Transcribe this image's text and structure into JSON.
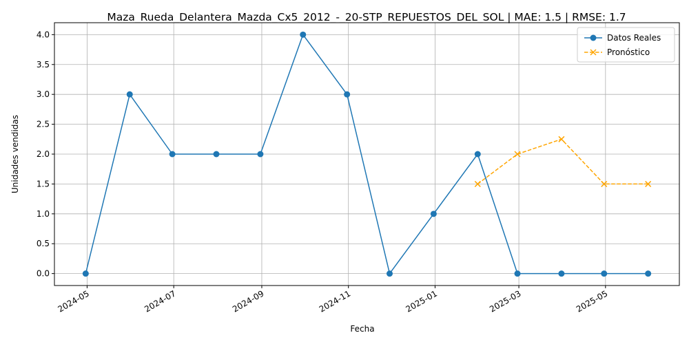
{
  "chart_data": {
    "type": "line",
    "title": "Maza_Rueda_Delantera_Mazda_Cx5_2012_-_20-STP_REPUESTOS_DEL_SOL | MAE: 1.5 | RMSE: 1.7",
    "xlabel": "Fecha",
    "ylabel": "Unidades vendidas",
    "ylim": [
      -0.2,
      4.2
    ],
    "xlim": [
      "2024-04-08",
      "2025-06-22"
    ],
    "grid": true,
    "legend_position": "upper-right",
    "x_ticks": [
      "2024-05",
      "2024-07",
      "2024-09",
      "2024-11",
      "2025-01",
      "2025-03",
      "2025-05"
    ],
    "y_ticks": [
      "0.0",
      "0.5",
      "1.0",
      "1.5",
      "2.0",
      "2.5",
      "3.0",
      "3.5",
      "4.0"
    ],
    "series": [
      {
        "name": "Datos Reales",
        "color": "#1f77b4",
        "marker": "circle",
        "linestyle": "solid",
        "x": [
          "2024-04-30",
          "2024-05-31",
          "2024-06-30",
          "2024-07-31",
          "2024-08-31",
          "2024-09-30",
          "2024-10-31",
          "2024-11-30",
          "2024-12-31",
          "2025-01-31",
          "2025-02-28",
          "2025-03-31",
          "2025-04-30",
          "2025-05-31"
        ],
        "values": [
          0,
          3,
          2,
          2,
          2,
          4,
          3,
          0,
          1,
          2,
          0,
          0,
          0,
          0
        ]
      },
      {
        "name": "Pronóstico",
        "color": "#ffa500",
        "marker": "x",
        "linestyle": "dashed",
        "x": [
          "2025-01-31",
          "2025-02-28",
          "2025-03-31",
          "2025-04-30",
          "2025-05-31"
        ],
        "values": [
          1.5,
          2.0,
          2.25,
          1.5,
          1.5
        ]
      }
    ]
  }
}
